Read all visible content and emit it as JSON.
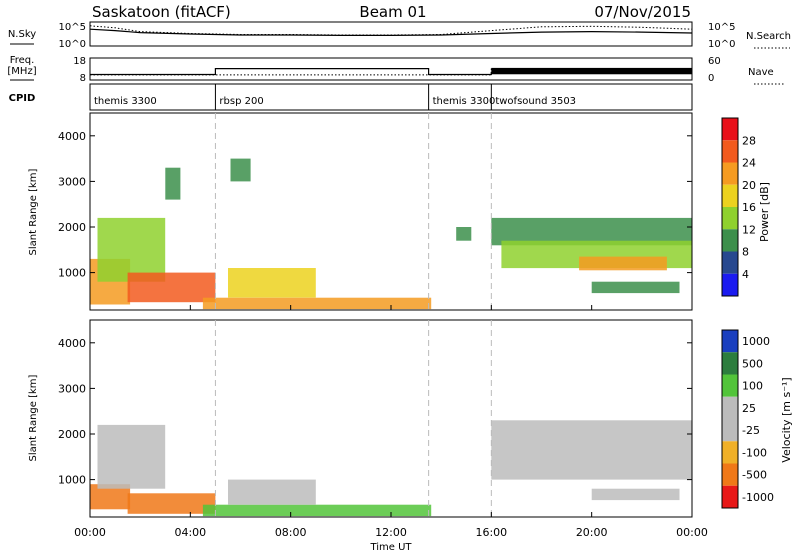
{
  "header": {
    "station": "Saskatoon (fitACF)",
    "beam": "Beam 01",
    "date": "07/Nov/2015"
  },
  "noise_panel": {
    "left_label": "N.Sky",
    "right_label": "N.Search",
    "left_ticks": [
      "10^5",
      "10^0"
    ],
    "right_ticks": [
      "10^5",
      "10^0"
    ]
  },
  "freq_panel": {
    "left_label_1": "Freq.",
    "left_label_2": "[MHz]",
    "right_label": "Nave",
    "left_ticks": [
      "18",
      "8"
    ],
    "right_ticks": [
      "60",
      "0"
    ]
  },
  "cpid_panel": {
    "label": "CPID",
    "segments": [
      {
        "label": "themis 3300",
        "start_hour": 0
      },
      {
        "label": "rbsp 200",
        "start_hour": 5
      },
      {
        "label": "themis 3300",
        "start_hour": 13.5
      },
      {
        "label": "twofsound 3503",
        "start_hour": 16
      }
    ]
  },
  "power_panel": {
    "ylabel": "Slant Range [km]",
    "colorbar_label": "Power [dB]",
    "colorbar_ticks": [
      "28",
      "24",
      "20",
      "16",
      "12",
      "8",
      "4"
    ],
    "colorbar_colors": [
      "#e8101a",
      "#f25a1e",
      "#f59b21",
      "#ecd21f",
      "#8fd12e",
      "#3c8f4b",
      "#27488f",
      "#1b1bf0"
    ]
  },
  "velocity_panel": {
    "ylabel": "Slant Range [km]",
    "colorbar_label": "Velocity [m s⁻¹]",
    "colorbar_ticks": [
      "1000",
      "500",
      "100",
      "25",
      "-25",
      "-100",
      "-500",
      "-1000"
    ],
    "colorbar_colors": [
      "#1a3fbf",
      "#2c7d3e",
      "#52c43a",
      "#bcbcbc",
      "#bcbcbc",
      "#f0b028",
      "#f07818",
      "#e81818"
    ]
  },
  "x_axis": {
    "label": "Time UT",
    "ticks": [
      "00:00",
      "04:00",
      "08:00",
      "12:00",
      "16:00",
      "20:00",
      "00:00"
    ]
  },
  "chart_data": [
    {
      "type": "line",
      "title": "Saskatoon (fitACF)",
      "subtitle": "Beam 01 — 07/Nov/2015",
      "xlabel": "Time UT",
      "ylabel": "N.Sky / N.Search",
      "xlim": [
        0,
        24
      ],
      "series": [
        {
          "name": "N.Sky",
          "x": [
            0,
            1,
            2,
            4,
            6,
            8,
            10,
            12,
            14,
            16,
            18,
            20,
            22,
            24
          ],
          "y": [
            3.5,
            3.2,
            2.8,
            2.5,
            2.3,
            2.3,
            2.2,
            2.2,
            2.3,
            2.6,
            2.9,
            3.0,
            2.9,
            2.7
          ]
        },
        {
          "name": "N.Search",
          "x": [
            0,
            1,
            2,
            4,
            6,
            8,
            10,
            12,
            14,
            16,
            18,
            20,
            22,
            24
          ],
          "y": [
            4.2,
            3.8,
            3.0,
            2.6,
            2.4,
            2.4,
            2.3,
            2.3,
            2.4,
            3.2,
            4.0,
            4.1,
            3.9,
            3.5
          ]
        }
      ]
    },
    {
      "type": "line",
      "xlabel": "Time UT",
      "ylabel": "Freq. [MHz] / Nave",
      "xlim": [
        0,
        24
      ],
      "series": [
        {
          "name": "Freq.",
          "x": [
            0,
            5,
            5,
            13.5,
            13.5,
            16,
            16,
            24
          ],
          "y": [
            10.5,
            10.5,
            13.2,
            13.2,
            10.5,
            10.5,
            11.5,
            11.5
          ]
        },
        {
          "name": "Nave",
          "x": [
            0,
            16,
            16,
            24
          ],
          "y": [
            14,
            14,
            30,
            30
          ]
        }
      ]
    },
    {
      "type": "heatmap",
      "title": "Power [dB]",
      "xlabel": "Time UT",
      "ylabel": "Slant Range [km]",
      "xlim": [
        0,
        24
      ],
      "ylim": [
        180,
        4500
      ],
      "yticks": [
        1000,
        2000,
        3000,
        4000
      ],
      "color_scale": [
        4,
        28
      ],
      "regions": [
        {
          "t0": 0.0,
          "t1": 1.6,
          "r0": 300,
          "r1": 1300,
          "value": 22
        },
        {
          "t0": 0.3,
          "t1": 3.0,
          "r0": 800,
          "r1": 2200,
          "value": 14
        },
        {
          "t0": 1.5,
          "t1": 5.0,
          "r0": 350,
          "r1": 1000,
          "value": 24
        },
        {
          "t0": 4.5,
          "t1": 13.6,
          "r0": 200,
          "r1": 450,
          "value": 22
        },
        {
          "t0": 5.5,
          "t1": 9.0,
          "r0": 450,
          "r1": 1100,
          "value": 15
        },
        {
          "t0": 3.0,
          "t1": 3.6,
          "r0": 2600,
          "r1": 3300,
          "value": 9
        },
        {
          "t0": 5.6,
          "t1": 6.4,
          "r0": 3000,
          "r1": 3500,
          "value": 8
        },
        {
          "t0": 16.0,
          "t1": 24.0,
          "r0": 1600,
          "r1": 2200,
          "value": 7
        },
        {
          "t0": 16.4,
          "t1": 24.0,
          "r0": 1100,
          "r1": 1700,
          "value": 14
        },
        {
          "t0": 19.5,
          "t1": 23.0,
          "r0": 1050,
          "r1": 1350,
          "value": 21
        },
        {
          "t0": 20.0,
          "t1": 23.5,
          "r0": 550,
          "r1": 800,
          "value": 7
        },
        {
          "t0": 14.6,
          "t1": 15.2,
          "r0": 1700,
          "r1": 2000,
          "value": 8
        }
      ]
    },
    {
      "type": "heatmap",
      "title": "Velocity [m s⁻¹]",
      "xlabel": "Time UT",
      "ylabel": "Slant Range [km]",
      "xlim": [
        0,
        24
      ],
      "ylim": [
        180,
        4500
      ],
      "yticks": [
        1000,
        2000,
        3000,
        4000
      ],
      "color_scale": [
        -1000,
        1000
      ],
      "regions": [
        {
          "t0": 0.0,
          "t1": 1.6,
          "r0": 350,
          "r1": 900,
          "value": -150
        },
        {
          "t0": 0.3,
          "t1": 3.0,
          "r0": 800,
          "r1": 2200,
          "value": 0
        },
        {
          "t0": 1.5,
          "t1": 5.0,
          "r0": 250,
          "r1": 700,
          "value": -120
        },
        {
          "t0": 4.5,
          "t1": 13.6,
          "r0": 200,
          "r1": 450,
          "value": 60
        },
        {
          "t0": 5.5,
          "t1": 9.0,
          "r0": 450,
          "r1": 1000,
          "value": 0
        },
        {
          "t0": 16.0,
          "t1": 24.0,
          "r0": 1000,
          "r1": 2300,
          "value": 0
        },
        {
          "t0": 20.0,
          "t1": 23.5,
          "r0": 550,
          "r1": 800,
          "value": 10
        }
      ]
    }
  ]
}
